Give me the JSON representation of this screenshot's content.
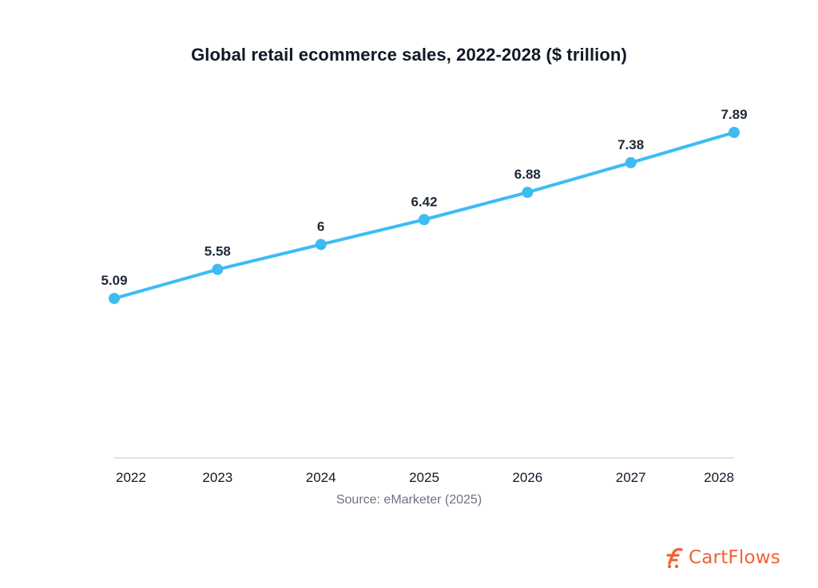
{
  "chart_data": {
    "type": "line",
    "title": "Global retail ecommerce sales, 2022-2028 ($ trillion)",
    "xlabel": "",
    "ylabel": "",
    "categories": [
      "2022",
      "2023",
      "2024",
      "2025",
      "2026",
      "2027",
      "2028"
    ],
    "series": [
      {
        "values": [
          5.09,
          5.58,
          6,
          6.42,
          6.88,
          7.38,
          7.89
        ],
        "labels": [
          "5.09",
          "5.58",
          "6",
          "6.42",
          "6.88",
          "7.38",
          "7.89"
        ],
        "color": "#3dbcf3"
      }
    ],
    "ylim": [
      2.4,
      8.24
    ],
    "grid": false,
    "legend": "none"
  },
  "source": "Source: eMarketer (2025)",
  "brand": {
    "name": "CartFlows",
    "icon": "cartflows-logo-icon",
    "color": "#f06335"
  },
  "colors": {
    "line": "#3dbcf3",
    "baseline": "#d1d5db",
    "label_text": "#1f2937"
  }
}
